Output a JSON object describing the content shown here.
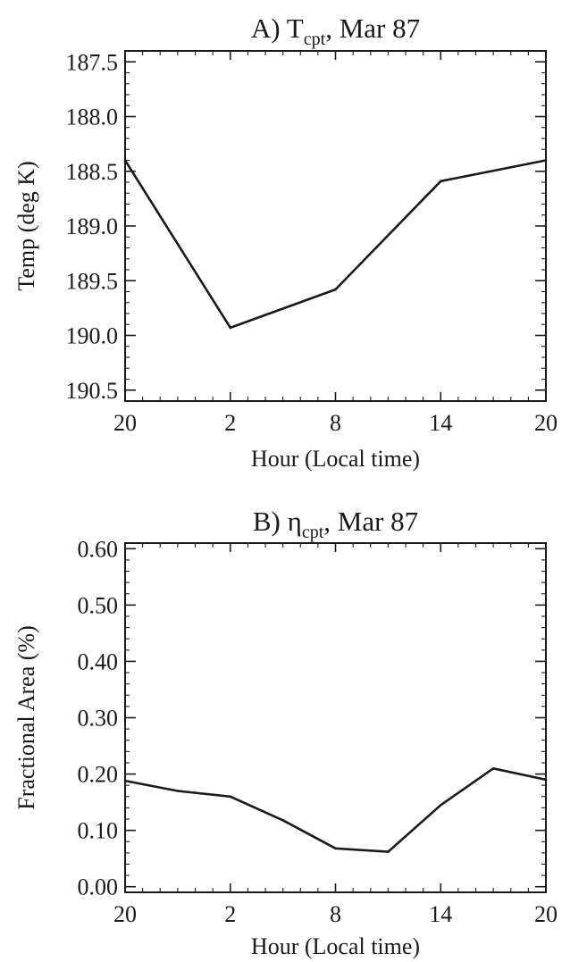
{
  "chart_data": [
    {
      "type": "line",
      "panel": "A",
      "title": {
        "prefix": "A) T",
        "subscript": "cpt",
        "suffix": ", Mar 87"
      },
      "xlabel": "Hour (Local time)",
      "ylabel": "Temp (deg K)",
      "x_tick_labels": [
        "20",
        "2",
        "8",
        "14",
        "20"
      ],
      "x_ticks": [
        0,
        6,
        12,
        18,
        24
      ],
      "xlim": [
        0,
        24
      ],
      "ylim": [
        187.4,
        190.6
      ],
      "y_inverted": true,
      "y_ticks": [
        187.5,
        188.0,
        188.5,
        189.0,
        189.5,
        190.0,
        190.5
      ],
      "y_tick_labels": [
        "187.5",
        "188.0",
        "188.5",
        "189.0",
        "189.5",
        "190.0",
        "190.5"
      ],
      "x_hours_since_20LT": [
        0,
        6,
        12,
        18,
        24
      ],
      "values": [
        188.4,
        189.93,
        189.58,
        188.59,
        188.4
      ]
    },
    {
      "type": "line",
      "panel": "B",
      "title": {
        "prefix": "B) η",
        "subscript": "cpt",
        "suffix": ", Mar 87"
      },
      "xlabel": "Hour (Local time)",
      "ylabel": "Fractional Area (%)",
      "x_tick_labels": [
        "20",
        "2",
        "8",
        "14",
        "20"
      ],
      "x_ticks": [
        0,
        6,
        12,
        18,
        24
      ],
      "xlim": [
        0,
        24
      ],
      "ylim": [
        -0.01,
        0.61
      ],
      "y_ticks": [
        0.0,
        0.1,
        0.2,
        0.3,
        0.4,
        0.5,
        0.6
      ],
      "y_tick_labels": [
        "0.00",
        "0.10",
        "0.20",
        "0.30",
        "0.40",
        "0.50",
        "0.60"
      ],
      "x_hours_since_20LT": [
        0,
        3,
        6,
        9,
        12,
        15,
        18,
        21,
        24
      ],
      "values": [
        0.188,
        0.17,
        0.16,
        0.118,
        0.068,
        0.062,
        0.145,
        0.21,
        0.19
      ]
    }
  ]
}
